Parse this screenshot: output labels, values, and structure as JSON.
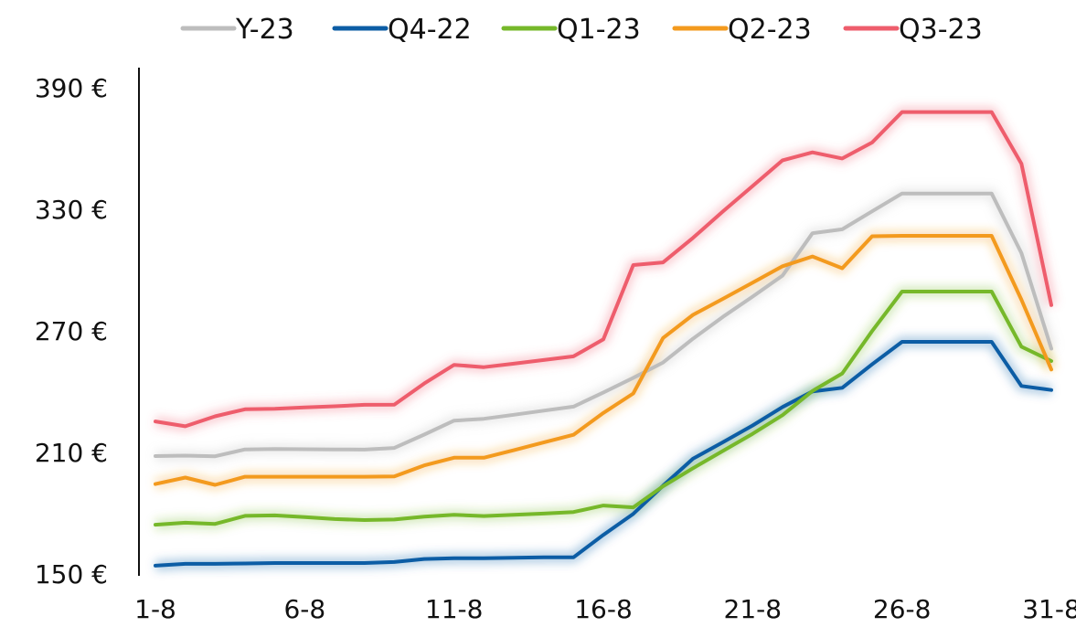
{
  "chart_data": {
    "type": "line",
    "title": "",
    "xlabel": "",
    "ylabel": "",
    "x_ticks": [
      "1-8",
      "6-8",
      "11-8",
      "16-8",
      "21-8",
      "26-8",
      "31-8"
    ],
    "y_ticks": [
      "150 €",
      "210 €",
      "270 €",
      "330 €",
      "390 €"
    ],
    "ylim": [
      150,
      390
    ],
    "xlim": [
      1,
      31
    ],
    "grid": false,
    "legend_position": "top",
    "x": [
      1,
      2,
      3,
      4,
      5,
      6,
      7,
      8,
      9,
      10,
      11,
      12,
      13,
      14,
      15,
      16,
      17,
      18,
      19,
      20,
      21,
      22,
      23,
      24,
      25,
      26,
      27,
      28,
      29,
      30,
      31
    ],
    "series": [
      {
        "name": "Y-23",
        "color": "#bdbdbd",
        "values": [
          208.2,
          208.4,
          208.1,
          211.5,
          211.7,
          211.6,
          211.5,
          211.4,
          212.2,
          218.8,
          225.7,
          226.6,
          228.6,
          230.6,
          232.6,
          239.6,
          246.8,
          254.4,
          266.1,
          276.9,
          286.9,
          297.3,
          318.2,
          320.1,
          329.0,
          337.8,
          337.8,
          337.8,
          337.8,
          308.4,
          261.2
        ]
      },
      {
        "name": "Q4-22",
        "color": "#0c5da5",
        "values": [
          154.1,
          155.0,
          155.0,
          155.2,
          155.4,
          155.4,
          155.4,
          155.4,
          155.9,
          157.4,
          157.8,
          157.8,
          158.0,
          158.2,
          158.2,
          169.3,
          179.7,
          193.6,
          206.9,
          215.0,
          223.3,
          232.4,
          240.1,
          241.9,
          253.5,
          264.6,
          264.6,
          264.6,
          264.6,
          242.8,
          240.8
        ]
      },
      {
        "name": "Q1-23",
        "color": "#76b82a",
        "values": [
          174.3,
          175.3,
          174.7,
          178.7,
          178.9,
          178.1,
          177.1,
          176.6,
          176.9,
          178.3,
          179.2,
          178.6,
          179.2,
          179.8,
          180.6,
          183.8,
          182.9,
          193.3,
          202.2,
          210.7,
          219.2,
          228.4,
          240.3,
          249.0,
          269.9,
          289.4,
          289.4,
          289.4,
          289.4,
          262.2,
          255.1
        ]
      },
      {
        "name": "Q2-23",
        "color": "#f39a1e",
        "values": [
          194.4,
          197.6,
          194.0,
          198.0,
          198.0,
          198.0,
          198.0,
          198.0,
          198.2,
          203.6,
          207.4,
          207.4,
          211.1,
          214.9,
          218.7,
          229.5,
          239.1,
          266.5,
          277.9,
          285.8,
          293.8,
          301.9,
          306.7,
          300.9,
          316.7,
          316.9,
          316.9,
          316.9,
          316.9,
          285.4,
          250.9
        ]
      },
      {
        "name": "Q3-23",
        "color": "#ee5d6c",
        "values": [
          225.3,
          222.9,
          227.8,
          231.3,
          231.5,
          232.2,
          232.8,
          233.5,
          233.6,
          244.0,
          253.2,
          252.1,
          253.8,
          255.6,
          257.4,
          265.8,
          302.5,
          303.8,
          315.9,
          328.9,
          341.5,
          354.2,
          358.1,
          355.1,
          363.0,
          378.0,
          378.0,
          378.0,
          378.0,
          352.5,
          282.7
        ]
      }
    ]
  }
}
